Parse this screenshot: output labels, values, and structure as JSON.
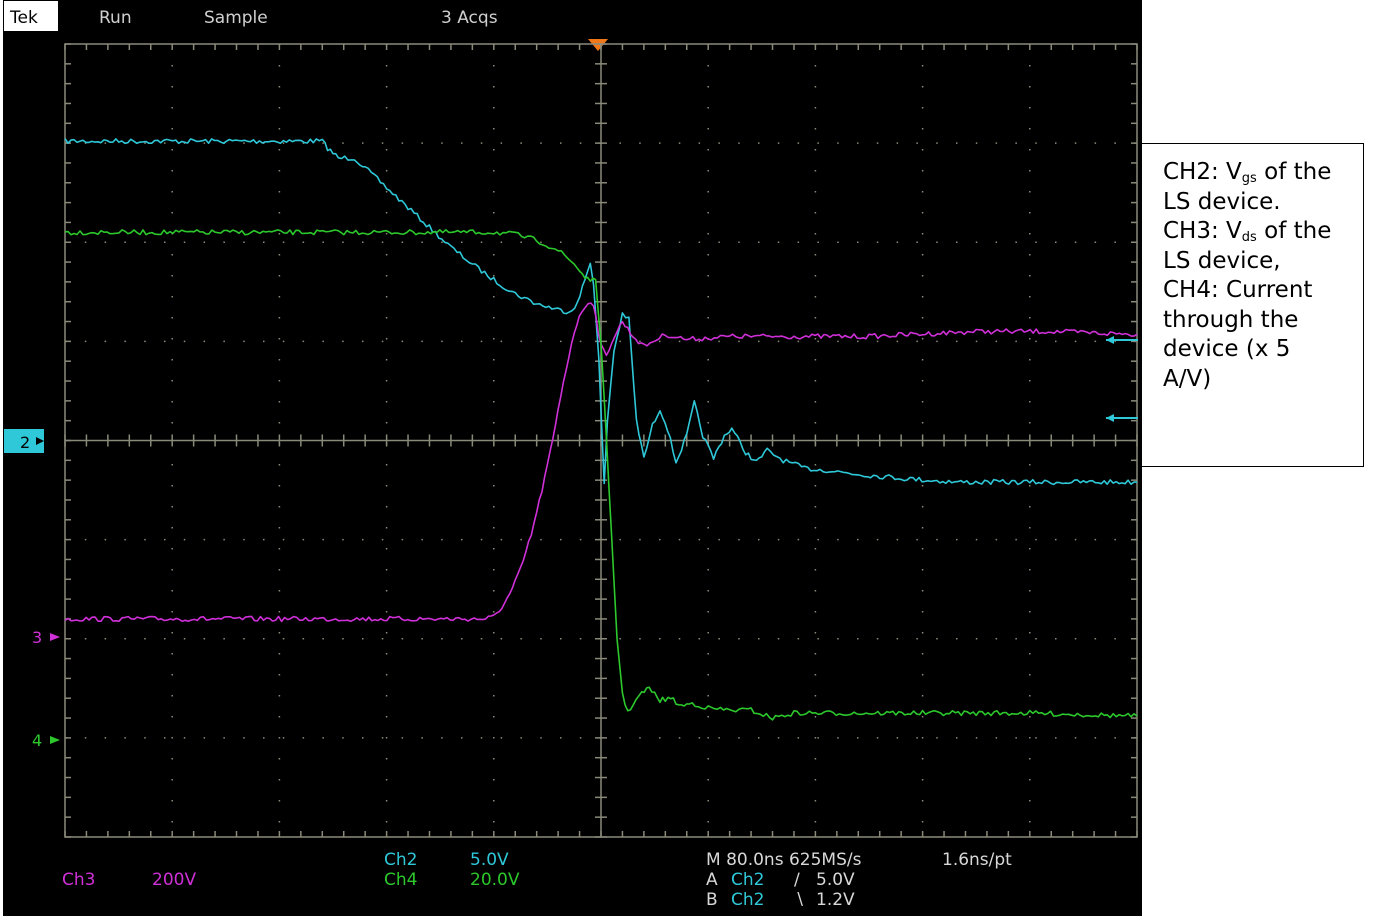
{
  "status_bar": {
    "brand": "Tek",
    "mode": "Run",
    "acq_mode": "Sample",
    "acqs": "3 Acqs"
  },
  "markers": {
    "ch2": "2",
    "ch3": "3",
    "ch4": "4"
  },
  "readouts": {
    "ch3_name": "Ch3",
    "ch3_scale": "200V",
    "ch2_name": "Ch2",
    "ch2_scale": "5.0V",
    "ch4_name": "Ch4",
    "ch4_scale": "20.0V",
    "timebase": "M 80.0ns 625MS/s",
    "resolution": "1.6ns/pt",
    "trig_a_label": "A",
    "trig_a_source": "Ch2",
    "trig_a_slope": "∕",
    "trig_a_level": "5.0V",
    "trig_b_label": "B",
    "trig_b_source": "Ch2",
    "trig_b_slope": "∖",
    "trig_b_level": "1.2V"
  },
  "note": {
    "ch2_prefix": "CH2: V",
    "ch2_sub": "gs",
    "ch2_suffix": " of the",
    "line2": "LS device.",
    "ch3_prefix": "CH3: V",
    "ch3_sub": "ds",
    "ch3_suffix": " of the",
    "line4": "LS device,",
    "line5": "CH4: Current",
    "line6": "through the",
    "line7": "device (x 5",
    "line8": "A/V)"
  },
  "colors": {
    "ch2": "#2ec8d8",
    "ch3": "#d030d8",
    "ch4": "#2cc82c",
    "grid": "#8a8a7a",
    "trigger": "#f07818",
    "background": "#000000"
  },
  "chart_data": {
    "type": "line",
    "x_unit": "div",
    "y_unit": "div",
    "xlim": [
      -5,
      5
    ],
    "ylim": [
      -4,
      4
    ],
    "grid": true,
    "series": [
      {
        "name": "Ch2",
        "channel": "ch2",
        "points": [
          [
            -5.0,
            3.02
          ],
          [
            -2.6,
            3.02
          ],
          [
            -2.55,
            2.95
          ],
          [
            -2.45,
            2.85
          ],
          [
            -2.3,
            2.85
          ],
          [
            -2.2,
            2.75
          ],
          [
            -2.0,
            2.55
          ],
          [
            -1.8,
            2.35
          ],
          [
            -1.6,
            2.15
          ],
          [
            -1.4,
            1.95
          ],
          [
            -1.2,
            1.78
          ],
          [
            -1.0,
            1.62
          ],
          [
            -0.8,
            1.48
          ],
          [
            -0.6,
            1.38
          ],
          [
            -0.4,
            1.32
          ],
          [
            -0.3,
            1.3
          ],
          [
            -0.22,
            1.38
          ],
          [
            -0.15,
            1.62
          ],
          [
            -0.1,
            1.8
          ],
          [
            -0.07,
            1.6
          ],
          [
            -0.02,
            0.8
          ],
          [
            0.03,
            -0.45
          ],
          [
            0.06,
            0.2
          ],
          [
            0.12,
            0.9
          ],
          [
            0.2,
            1.28
          ],
          [
            0.26,
            1.22
          ],
          [
            0.33,
            0.2
          ],
          [
            0.4,
            -0.18
          ],
          [
            0.48,
            0.15
          ],
          [
            0.55,
            0.32
          ],
          [
            0.62,
            0.12
          ],
          [
            0.7,
            -0.22
          ],
          [
            0.8,
            0.05
          ],
          [
            0.87,
            0.38
          ],
          [
            0.95,
            0.05
          ],
          [
            1.05,
            -0.18
          ],
          [
            1.15,
            0.05
          ],
          [
            1.22,
            0.12
          ],
          [
            1.35,
            -0.12
          ],
          [
            1.45,
            -0.22
          ],
          [
            1.55,
            -0.1
          ],
          [
            1.7,
            -0.2
          ],
          [
            1.9,
            -0.28
          ],
          [
            2.1,
            -0.3
          ],
          [
            2.4,
            -0.34
          ],
          [
            2.8,
            -0.38
          ],
          [
            3.3,
            -0.42
          ],
          [
            4.0,
            -0.42
          ],
          [
            5.0,
            -0.42
          ]
        ]
      },
      {
        "name": "Ch3",
        "channel": "ch3",
        "points": [
          [
            -5.0,
            -1.8
          ],
          [
            -1.1,
            -1.8
          ],
          [
            -1.0,
            -1.78
          ],
          [
            -0.95,
            -1.72
          ],
          [
            -0.85,
            -1.55
          ],
          [
            -0.75,
            -1.3
          ],
          [
            -0.65,
            -0.95
          ],
          [
            -0.55,
            -0.5
          ],
          [
            -0.45,
            0.0
          ],
          [
            -0.35,
            0.6
          ],
          [
            -0.25,
            1.1
          ],
          [
            -0.18,
            1.3
          ],
          [
            -0.12,
            1.4
          ],
          [
            -0.07,
            1.38
          ],
          [
            0.0,
            0.95
          ],
          [
            0.05,
            0.85
          ],
          [
            0.1,
            1.0
          ],
          [
            0.2,
            1.2
          ],
          [
            0.3,
            1.05
          ],
          [
            0.4,
            0.95
          ],
          [
            0.6,
            1.07
          ],
          [
            0.8,
            1.02
          ],
          [
            1.2,
            1.05
          ],
          [
            1.8,
            1.05
          ],
          [
            2.5,
            1.05
          ],
          [
            3.5,
            1.1
          ],
          [
            4.2,
            1.1
          ],
          [
            5.0,
            1.07
          ]
        ]
      },
      {
        "name": "Ch4",
        "channel": "ch4",
        "points": [
          [
            -5.0,
            2.1
          ],
          [
            -1.0,
            2.1
          ],
          [
            -0.8,
            2.08
          ],
          [
            -0.6,
            2.02
          ],
          [
            -0.4,
            1.92
          ],
          [
            -0.25,
            1.78
          ],
          [
            -0.15,
            1.65
          ],
          [
            -0.05,
            1.6
          ],
          [
            0.0,
            1.0
          ],
          [
            0.05,
            0.0
          ],
          [
            0.1,
            -1.0
          ],
          [
            0.15,
            -2.0
          ],
          [
            0.2,
            -2.55
          ],
          [
            0.25,
            -2.75
          ],
          [
            0.3,
            -2.65
          ],
          [
            0.38,
            -2.55
          ],
          [
            0.45,
            -2.5
          ],
          [
            0.55,
            -2.62
          ],
          [
            0.65,
            -2.6
          ],
          [
            0.75,
            -2.68
          ],
          [
            0.85,
            -2.65
          ],
          [
            1.0,
            -2.7
          ],
          [
            1.2,
            -2.72
          ],
          [
            1.4,
            -2.72
          ],
          [
            1.6,
            -2.8
          ],
          [
            1.8,
            -2.75
          ],
          [
            2.0,
            -2.75
          ],
          [
            2.5,
            -2.75
          ],
          [
            3.0,
            -2.75
          ],
          [
            4.0,
            -2.75
          ],
          [
            5.0,
            -2.78
          ]
        ]
      }
    ]
  }
}
